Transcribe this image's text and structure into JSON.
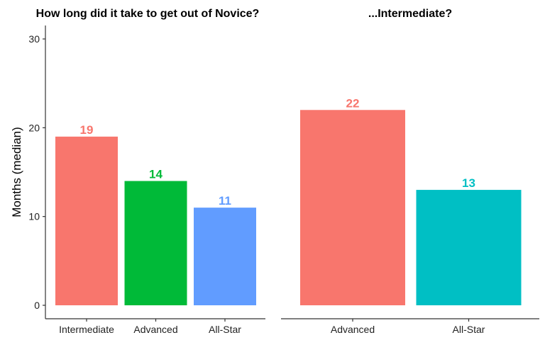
{
  "chart_data": [
    {
      "type": "bar",
      "title": "How long did it take to get out of Novice?",
      "xlabel": "",
      "ylabel": "Months (median)",
      "ylim": [
        0,
        30
      ],
      "yticks": [
        0,
        10,
        20,
        30
      ],
      "grid": false,
      "categories": [
        "Intermediate",
        "Advanced",
        "All-Star"
      ],
      "values": [
        19,
        14,
        11
      ],
      "colors": [
        "#F8766D",
        "#00BA38",
        "#619CFF"
      ],
      "data_labels": [
        "19",
        "14",
        "11"
      ]
    },
    {
      "type": "bar",
      "title": "...Intermediate?",
      "xlabel": "",
      "ylabel": "",
      "ylim": [
        0,
        30
      ],
      "grid": false,
      "categories": [
        "Advanced",
        "All-Star"
      ],
      "values": [
        22,
        13
      ],
      "colors": [
        "#F8766D",
        "#00BFC4"
      ],
      "data_labels": [
        "22",
        "13"
      ]
    }
  ]
}
